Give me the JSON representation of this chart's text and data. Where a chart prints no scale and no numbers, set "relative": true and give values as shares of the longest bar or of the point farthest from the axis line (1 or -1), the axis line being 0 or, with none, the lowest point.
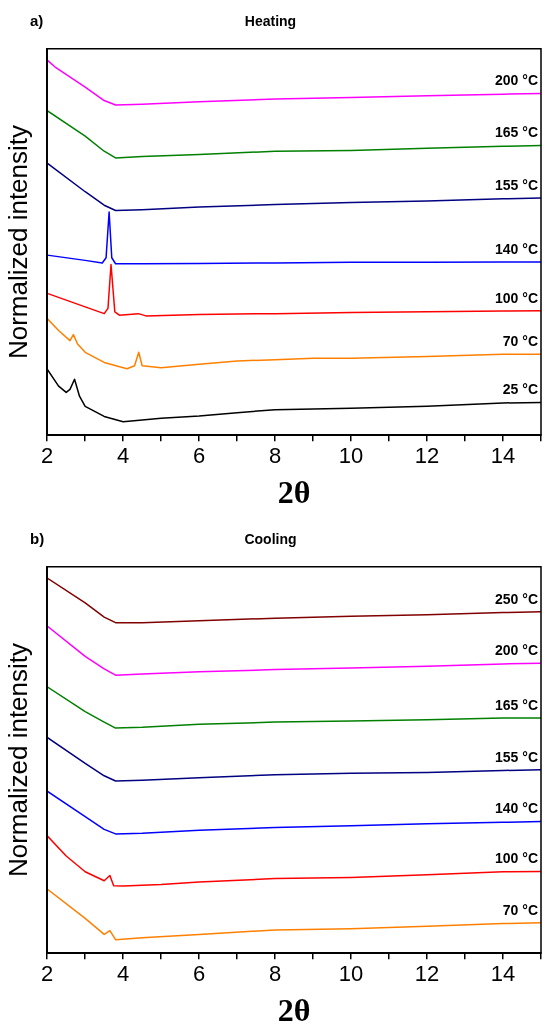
{
  "chart_data": [
    {
      "type": "line",
      "title": "Heating",
      "annotations": [
        "a)"
      ],
      "xlabel": "2θ",
      "ylabel": "Normalized intensity",
      "relative": true,
      "xlim": [
        2,
        15
      ],
      "xticks": [
        2,
        {
          "value": 3,
          "label": null
        },
        4,
        {
          "value": 5,
          "label": null
        },
        6,
        {
          "value": 7,
          "label": null
        },
        8,
        {
          "value": 9,
          "label": null
        },
        10,
        {
          "value": 11,
          "label": null
        },
        12,
        {
          "value": 13,
          "label": null
        },
        14,
        {
          "value": 15,
          "label": null
        }
      ],
      "tick_labels": "x",
      "grid": false,
      "legend": false,
      "marker": "none",
      "line_style": "solid",
      "series": [
        {
          "name": "200 °C",
          "color": "#ff00ff",
          "x": [
            2,
            2.2,
            3,
            3.5,
            3.8,
            4.5,
            6,
            8,
            10,
            12,
            14,
            15
          ],
          "values": [
            1.0,
            0.982,
            0.928,
            0.892,
            0.88,
            0.882,
            0.889,
            0.896,
            0.9,
            0.905,
            0.909,
            0.911
          ]
        },
        {
          "name": "165 °C",
          "color": "#008000",
          "x": [
            2,
            3,
            3.5,
            3.8,
            4.5,
            6,
            8,
            10,
            12,
            14,
            15
          ],
          "values": [
            0.865,
            0.797,
            0.757,
            0.739,
            0.743,
            0.748,
            0.757,
            0.759,
            0.765,
            0.77,
            0.772
          ]
        },
        {
          "name": "155 °C",
          "color": "#000080",
          "x": [
            2,
            3,
            3.5,
            3.8,
            4.5,
            6,
            8,
            10,
            12,
            14,
            15
          ],
          "values": [
            0.725,
            0.649,
            0.613,
            0.599,
            0.601,
            0.608,
            0.615,
            0.62,
            0.624,
            0.63,
            0.632
          ]
        },
        {
          "name": "140 °C",
          "color": "#0000ff",
          "x": [
            2,
            3,
            3.45,
            3.55,
            3.63,
            3.7,
            3.8,
            4.5,
            6,
            8,
            10,
            12,
            14,
            15
          ],
          "values": [
            0.48,
            0.466,
            0.459,
            0.473,
            0.595,
            0.473,
            0.457,
            0.457,
            0.458,
            0.459,
            0.461,
            0.461,
            0.462,
            0.462
          ]
        },
        {
          "name": "100 °C",
          "color": "#ff0000",
          "x": [
            2,
            3,
            3.5,
            3.6,
            3.68,
            3.78,
            3.9,
            4.4,
            4.6,
            6,
            8,
            10,
            12,
            14,
            15
          ],
          "values": [
            0.378,
            0.342,
            0.324,
            0.338,
            0.455,
            0.329,
            0.32,
            0.324,
            0.318,
            0.322,
            0.324,
            0.327,
            0.329,
            0.331,
            0.332
          ]
        },
        {
          "name": "70 °C",
          "color": "#ff8000",
          "x": [
            2,
            2.3,
            2.6,
            2.69,
            2.8,
            3,
            3.5,
            4.1,
            4.3,
            4.41,
            4.5,
            5,
            6,
            7,
            8,
            9,
            10,
            12,
            14,
            15
          ],
          "values": [
            0.311,
            0.279,
            0.252,
            0.268,
            0.243,
            0.221,
            0.194,
            0.177,
            0.185,
            0.221,
            0.185,
            0.18,
            0.189,
            0.198,
            0.201,
            0.205,
            0.205,
            0.21,
            0.216,
            0.216
          ]
        },
        {
          "name": "25 °C",
          "color": "#000000",
          "x": [
            2,
            2.3,
            2.5,
            2.6,
            2.72,
            2.85,
            3,
            3.5,
            4,
            5,
            6,
            7,
            8,
            10,
            12,
            14,
            15
          ],
          "values": [
            0.176,
            0.131,
            0.114,
            0.122,
            0.149,
            0.104,
            0.077,
            0.05,
            0.036,
            0.045,
            0.051,
            0.06,
            0.068,
            0.072,
            0.077,
            0.086,
            0.087
          ]
        }
      ]
    },
    {
      "type": "line",
      "title": "Cooling",
      "annotations": [
        "b)"
      ],
      "xlabel": "2θ",
      "ylabel": "Normalized intensity",
      "relative": true,
      "xlim": [
        2,
        15
      ],
      "xticks": [
        2,
        {
          "value": 3,
          "label": null
        },
        4,
        {
          "value": 5,
          "label": null
        },
        6,
        {
          "value": 7,
          "label": null
        },
        8,
        {
          "value": 9,
          "label": null
        },
        10,
        {
          "value": 11,
          "label": null
        },
        12,
        {
          "value": 13,
          "label": null
        },
        14,
        {
          "value": 15,
          "label": null
        }
      ],
      "tick_labels": "x",
      "grid": false,
      "legend": false,
      "marker": "none",
      "line_style": "solid",
      "series": [
        {
          "name": "250 °C",
          "color": "#800000",
          "x": [
            2,
            3,
            3.5,
            3.8,
            4.5,
            6,
            8,
            10,
            12,
            14,
            15
          ],
          "values": [
            1.0,
            0.934,
            0.896,
            0.881,
            0.881,
            0.886,
            0.893,
            0.898,
            0.902,
            0.908,
            0.91
          ]
        },
        {
          "name": "200 °C",
          "color": "#ff00ff",
          "x": [
            2,
            3,
            3.5,
            3.8,
            4.5,
            6,
            8,
            10,
            12,
            14,
            15
          ],
          "values": [
            0.872,
            0.791,
            0.758,
            0.741,
            0.744,
            0.75,
            0.756,
            0.76,
            0.765,
            0.771,
            0.773
          ]
        },
        {
          "name": "165 °C",
          "color": "#008000",
          "x": [
            2,
            3,
            3.5,
            3.8,
            4.5,
            6,
            8,
            10,
            12,
            14,
            15
          ],
          "values": [
            0.71,
            0.644,
            0.616,
            0.6,
            0.602,
            0.61,
            0.616,
            0.619,
            0.622,
            0.627,
            0.627
          ]
        },
        {
          "name": "155 °C",
          "color": "#000080",
          "x": [
            2,
            3,
            3.5,
            3.8,
            4.5,
            6,
            8,
            10,
            12,
            14,
            15
          ],
          "values": [
            0.575,
            0.506,
            0.473,
            0.459,
            0.461,
            0.468,
            0.476,
            0.48,
            0.482,
            0.487,
            0.489
          ]
        },
        {
          "name": "140 °C",
          "color": "#0000ff",
          "x": [
            2,
            3,
            3.5,
            3.8,
            4.5,
            6,
            8,
            10,
            12,
            14,
            15
          ],
          "values": [
            0.432,
            0.364,
            0.33,
            0.318,
            0.32,
            0.328,
            0.335,
            0.34,
            0.345,
            0.349,
            0.351
          ]
        },
        {
          "name": "100 °C",
          "color": "#ff0000",
          "x": [
            2,
            2.5,
            3,
            3.5,
            3.65,
            3.75,
            4,
            5,
            6,
            8,
            10,
            12,
            14,
            15
          ],
          "values": [
            0.313,
            0.259,
            0.217,
            0.193,
            0.207,
            0.18,
            0.179,
            0.183,
            0.19,
            0.199,
            0.202,
            0.209,
            0.217,
            0.218
          ]
        },
        {
          "name": "70 °C",
          "color": "#ff8000",
          "x": [
            2,
            3,
            3.5,
            3.65,
            3.8,
            4.5,
            6,
            8,
            10,
            12,
            14,
            15
          ],
          "values": [
            0.171,
            0.093,
            0.05,
            0.06,
            0.036,
            0.041,
            0.05,
            0.062,
            0.065,
            0.072,
            0.079,
            0.081
          ]
        }
      ]
    }
  ]
}
